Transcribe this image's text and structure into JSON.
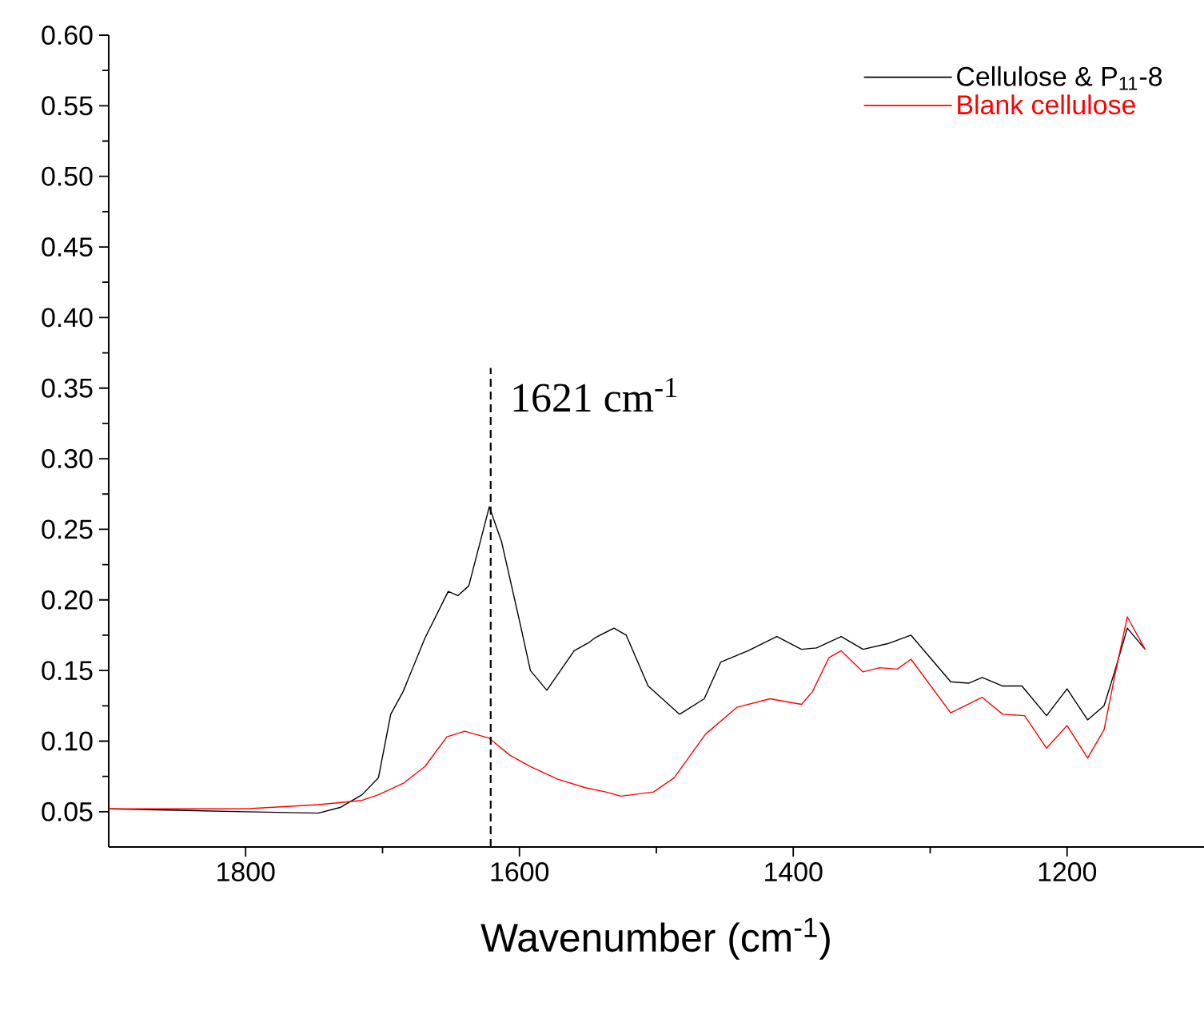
{
  "chart_data": {
    "type": "line",
    "xlabel": "Wavenumber (cm$^{-1}$)",
    "xlim": [
      1900,
      1100
    ],
    "ylim": [
      0.025,
      0.6
    ],
    "xticks": [
      1800,
      1600,
      1400,
      1200
    ],
    "yticks": [
      0.05,
      {
        "value": 0.1,
        "label": "0.10"
      },
      0.15,
      {
        "value": 0.2,
        "label": "0.20"
      },
      0.25,
      {
        "value": 0.3,
        "label": "0.30"
      },
      0.35,
      {
        "value": 0.4,
        "label": "0.40"
      },
      0.45,
      {
        "value": 0.5,
        "label": "0.50"
      },
      0.55,
      {
        "value": 0.6,
        "label": "0.60"
      }
    ],
    "legend": "top right",
    "grid": false,
    "marker": "none",
    "line_style": "solid",
    "ref_lines": [
      {
        "axis": "x",
        "value": 1621,
        "label": "1621 cm$^{-1}$",
        "line_style": "dashed",
        "color": "#000000"
      }
    ],
    "series": [
      {
        "name": "Cellulose & P$_{11}$-8",
        "color": "#000000",
        "x": [
          1900,
          1800,
          1747,
          1731,
          1715,
          1703,
          1694,
          1685,
          1669,
          1652,
          1645,
          1637,
          1622,
          1613,
          1599,
          1592,
          1580,
          1560,
          1549,
          1545,
          1531,
          1522,
          1506,
          1483,
          1465,
          1453,
          1433,
          1412,
          1394,
          1383,
          1365,
          1349,
          1331,
          1314,
          1285,
          1272,
          1262,
          1247,
          1233,
          1215,
          1200,
          1185,
          1173,
          1165,
          1156,
          1143
        ],
        "values": [
          0.052,
          0.05,
          0.049,
          0.053,
          0.062,
          0.074,
          0.119,
          0.135,
          0.173,
          0.206,
          0.203,
          0.21,
          0.266,
          0.241,
          0.181,
          0.15,
          0.136,
          0.164,
          0.17,
          0.173,
          0.18,
          0.175,
          0.139,
          0.119,
          0.13,
          0.156,
          0.164,
          0.174,
          0.165,
          0.166,
          0.174,
          0.165,
          0.169,
          0.175,
          0.142,
          0.141,
          0.145,
          0.139,
          0.139,
          0.118,
          0.137,
          0.115,
          0.125,
          0.15,
          0.18,
          0.165
        ]
      },
      {
        "name": "Blank cellulose",
        "color": "#ff0000",
        "x": [
          1900,
          1800,
          1747,
          1715,
          1703,
          1685,
          1669,
          1653,
          1640,
          1622,
          1607,
          1592,
          1572,
          1552,
          1537,
          1526,
          1502,
          1487,
          1464,
          1441,
          1417,
          1394,
          1386,
          1374,
          1365,
          1349,
          1337,
          1324,
          1314,
          1285,
          1262,
          1247,
          1231,
          1215,
          1200,
          1185,
          1173,
          1165,
          1156,
          1143
        ],
        "values": [
          0.052,
          0.052,
          0.055,
          0.058,
          0.062,
          0.07,
          0.082,
          0.103,
          0.107,
          0.102,
          0.09,
          0.082,
          0.073,
          0.067,
          0.064,
          0.061,
          0.064,
          0.074,
          0.105,
          0.124,
          0.13,
          0.126,
          0.135,
          0.159,
          0.164,
          0.149,
          0.152,
          0.151,
          0.158,
          0.12,
          0.131,
          0.119,
          0.118,
          0.095,
          0.111,
          0.088,
          0.108,
          0.147,
          0.188,
          0.165
        ]
      }
    ]
  }
}
